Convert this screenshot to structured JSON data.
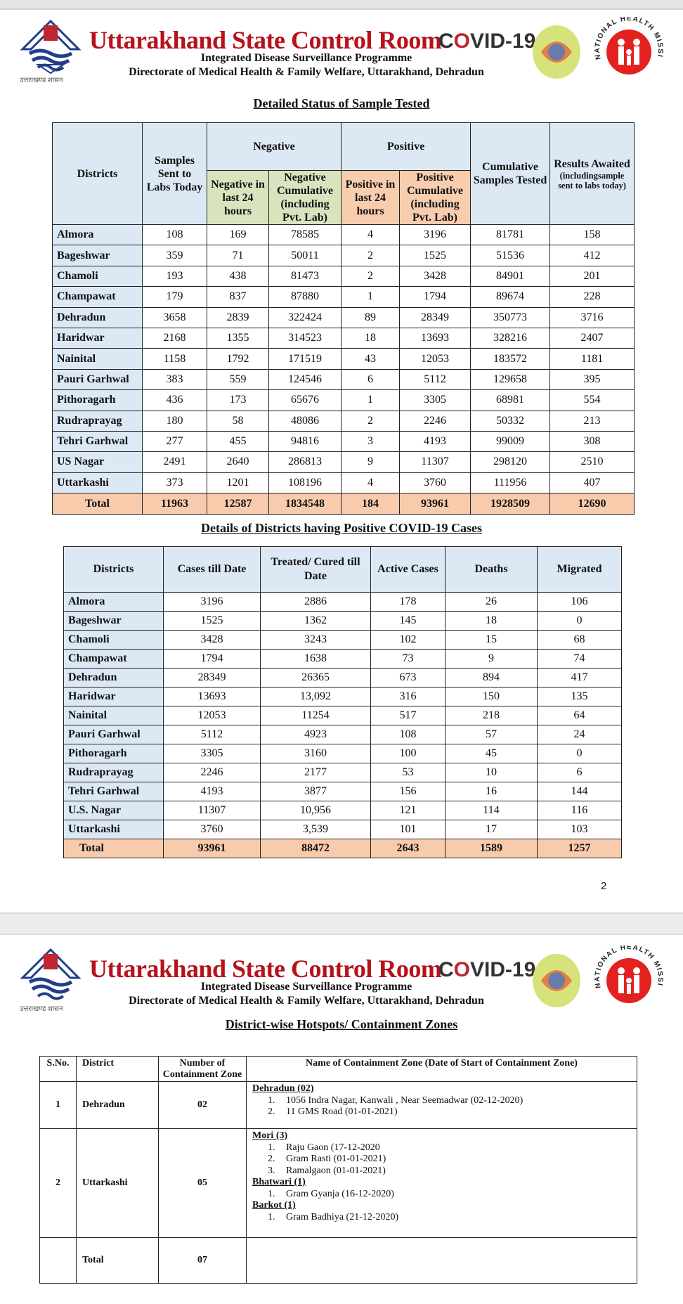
{
  "header": {
    "title": "Uttarakhand State Control Room",
    "covid_prefix": "C",
    "covid_o": "O",
    "covid_suffix": "VID-19",
    "subtitle1": "Integrated Disease Surveillance Programme",
    "subtitle2": "Directorate of Medical Health & Family Welfare, Uttarakhand, Dehradun",
    "left_logo_caption": "उत्तराखण्ड शासन",
    "right_logo_text": "NATIONAL HEALTH MISSION"
  },
  "colors": {
    "title_red": "#b5121b",
    "header_blue": "#dce9f5",
    "negative_green": "#d9e4bf",
    "positive_orange": "#f8cdae",
    "total_orange": "#f8cbad"
  },
  "sample_table": {
    "title": "Detailed Status of Sample Tested",
    "headers": {
      "districts": "Districts",
      "samples_sent": "Samples Sent to Labs Today",
      "negative": "Negative",
      "positive": "Positive",
      "neg_24": "Negative in last 24 hours",
      "neg_cum": "Negative Cumulative (including Pvt. Lab)",
      "pos_24": "Positive in last 24 hours",
      "pos_cum": "Positive Cumulative (including Pvt. Lab)",
      "cumulative": "Cumulative Samples Tested",
      "results_awaited": "Results Awaited",
      "results_awaited_note": "(includingsample sent to labs today)"
    },
    "rows": [
      [
        "Almora",
        "108",
        "169",
        "78585",
        "4",
        "3196",
        "81781",
        "158"
      ],
      [
        "Bageshwar",
        "359",
        "71",
        "50011",
        "2",
        "1525",
        "51536",
        "412"
      ],
      [
        "Chamoli",
        "193",
        "438",
        "81473",
        "2",
        "3428",
        "84901",
        "201"
      ],
      [
        "Champawat",
        "179",
        "837",
        "87880",
        "1",
        "1794",
        "89674",
        "228"
      ],
      [
        "Dehradun",
        "3658",
        "2839",
        "322424",
        "89",
        "28349",
        "350773",
        "3716"
      ],
      [
        "Haridwar",
        "2168",
        "1355",
        "314523",
        "18",
        "13693",
        "328216",
        "2407"
      ],
      [
        "Nainital",
        "1158",
        "1792",
        "171519",
        "43",
        "12053",
        "183572",
        "1181"
      ],
      [
        "Pauri Garhwal",
        "383",
        "559",
        "124546",
        "6",
        "5112",
        "129658",
        "395"
      ],
      [
        "Pithoragarh",
        "436",
        "173",
        "65676",
        "1",
        "3305",
        "68981",
        "554"
      ],
      [
        "Rudraprayag",
        "180",
        "58",
        "48086",
        "2",
        "2246",
        "50332",
        "213"
      ],
      [
        "Tehri Garhwal",
        "277",
        "455",
        "94816",
        "3",
        "4193",
        "99009",
        "308"
      ],
      [
        "US Nagar",
        "2491",
        "2640",
        "286813",
        "9",
        "11307",
        "298120",
        "2510"
      ],
      [
        "Uttarkashi",
        "373",
        "1201",
        "108196",
        "4",
        "3760",
        "111956",
        "407"
      ]
    ],
    "total": [
      "Total",
      "11963",
      "12587",
      "1834548",
      "184",
      "93961",
      "1928509",
      "12690"
    ]
  },
  "positive_table": {
    "title": "Details of Districts having Positive COVID-19 Cases",
    "headers": [
      "Districts",
      "Cases till Date",
      "Treated/ Cured till Date",
      "Active Cases",
      "Deaths",
      "Migrated"
    ],
    "rows": [
      [
        "Almora",
        "3196",
        "2886",
        "178",
        "26",
        "106"
      ],
      [
        "Bageshwar",
        "1525",
        "1362",
        "145",
        "18",
        "0"
      ],
      [
        "Chamoli",
        "3428",
        "3243",
        "102",
        "15",
        "68"
      ],
      [
        "Champawat",
        "1794",
        "1638",
        "73",
        "9",
        "74"
      ],
      [
        "Dehradun",
        "28349",
        "26365",
        "673",
        "894",
        "417"
      ],
      [
        "Haridwar",
        "13693",
        "13,092",
        "316",
        "150",
        "135"
      ],
      [
        "Nainital",
        "12053",
        "11254",
        "517",
        "218",
        "64"
      ],
      [
        "Pauri Garhwal",
        "5112",
        "4923",
        "108",
        "57",
        "24"
      ],
      [
        "Pithoragarh",
        "3305",
        "3160",
        "100",
        "45",
        "0"
      ],
      [
        "Rudraprayag",
        "2246",
        "2177",
        "53",
        "10",
        "6"
      ],
      [
        "Tehri Garhwal",
        "4193",
        "3877",
        "156",
        "16",
        "144"
      ],
      [
        "U.S. Nagar",
        "11307",
        "10,956",
        "121",
        "114",
        "116"
      ],
      [
        "Uttarkashi",
        "3760",
        "3,539",
        "101",
        "17",
        "103"
      ]
    ],
    "total": [
      "Total",
      "93961",
      "88472",
      "2643",
      "1589",
      "1257"
    ]
  },
  "page_number": "2",
  "containment": {
    "title": "District-wise Hotspots/ Containment Zones",
    "headers": [
      "S.No.",
      "District",
      "Number of Containment Zone",
      "Name of Containment Zone (Date of Start of Containment Zone)"
    ],
    "rows": [
      {
        "sno": "1",
        "district": "Dehradun",
        "count": "02",
        "groups": [
          {
            "name": "Dehradun (02)",
            "items": [
              {
                "n": "1.",
                "text": "1056 Indra Nagar, Kanwali , Near Seemadwar (02-12-2020)"
              },
              {
                "n": "2.",
                "text": "11 GMS Road (01-01-2021)"
              }
            ]
          }
        ]
      },
      {
        "sno": "2",
        "district": "Uttarkashi",
        "count": "05",
        "groups": [
          {
            "name": "Mori (3)",
            "items": [
              {
                "n": "1.",
                "text": "Raju Gaon (17-12-2020"
              },
              {
                "n": "2.",
                "text": "Gram Rasti (01-01-2021)"
              },
              {
                "n": "3.",
                "text": "Ramalgaon (01-01-2021)"
              }
            ]
          },
          {
            "name": "Bhatwari (1)",
            "items": [
              {
                "n": "1.",
                "text": "Gram Gyanja (16-12-2020)"
              }
            ]
          },
          {
            "name": "Barkot (1)",
            "items": [
              {
                "n": "1.",
                "text": "Gram Badhiya  (21-12-2020)"
              }
            ]
          }
        ]
      }
    ],
    "total": {
      "label": "Total",
      "count": "07"
    }
  }
}
